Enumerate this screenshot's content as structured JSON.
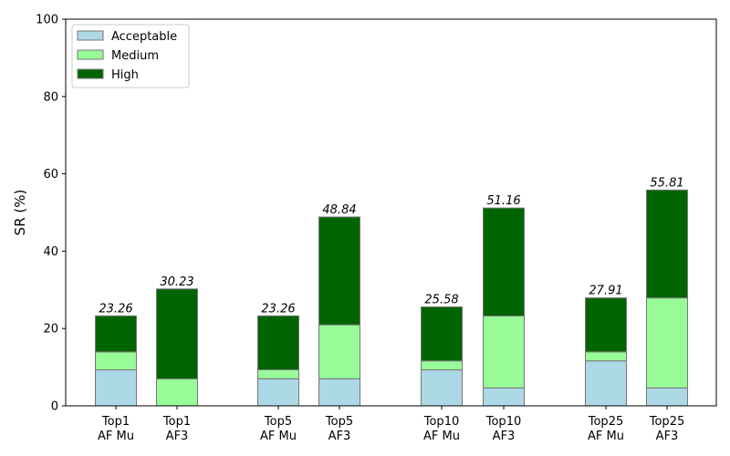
{
  "chart_data": {
    "type": "bar",
    "stacked": true,
    "ylabel": "SR (%)",
    "xlabel": "",
    "ylim": [
      0,
      100
    ],
    "yticks": [
      0,
      20,
      40,
      60,
      80,
      100
    ],
    "categories": [
      {
        "line1": "Top1",
        "line2": "AF Mu"
      },
      {
        "line1": "Top1",
        "line2": "AF3"
      },
      {
        "line1": "Top5",
        "line2": "AF Mu"
      },
      {
        "line1": "Top5",
        "line2": "AF3"
      },
      {
        "line1": "Top10",
        "line2": "AF Mu"
      },
      {
        "line1": "Top10",
        "line2": "AF3"
      },
      {
        "line1": "Top25",
        "line2": "AF Mu"
      },
      {
        "line1": "Top25",
        "line2": "AF3"
      }
    ],
    "series": [
      {
        "name": "Acceptable",
        "color": "#add8e6",
        "values": [
          9.3,
          0,
          7.0,
          7.0,
          9.3,
          4.65,
          11.63,
          4.65
        ]
      },
      {
        "name": "Medium",
        "color": "#98fb98",
        "values": [
          4.65,
          6.98,
          2.33,
          13.95,
          2.33,
          18.6,
          2.33,
          23.26
        ]
      },
      {
        "name": "High",
        "color": "#006400",
        "values": [
          9.31,
          23.25,
          13.93,
          27.89,
          13.95,
          27.91,
          13.95,
          27.9
        ]
      }
    ],
    "totals": [
      "23.26",
      "30.23",
      "23.26",
      "48.84",
      "25.58",
      "51.16",
      "27.91",
      "55.81"
    ],
    "legend_position": "top-left",
    "grid": false
  }
}
